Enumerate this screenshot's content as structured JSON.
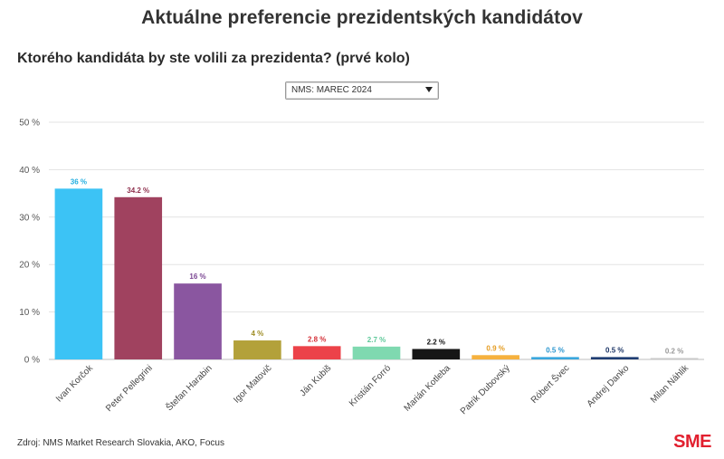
{
  "header": {
    "title": "Aktuálne preferencie prezidentských kandidátov",
    "subtitle": "Ktorého kandidáta by ste volili za prezidenta? (prvé kolo)"
  },
  "filter": {
    "selected": "NMS: MAREC 2024"
  },
  "footer": {
    "source": "Zdroj: NMS Market Research Slovakia, AKO, Focus",
    "logo": "SME"
  },
  "chart_data": {
    "type": "bar",
    "categories": [
      "Ivan Korčok",
      "Peter Pellegrini",
      "Štefan Harabin",
      "Igor Matovič",
      "Ján Kubiš",
      "Kristián Forró",
      "Marián Kotleba",
      "Patrik Dubovský",
      "Róbert Švec",
      "Andrej Danko",
      "Milan Náhlik"
    ],
    "values": [
      36,
      34.2,
      16,
      4,
      2.8,
      2.7,
      2.2,
      0.9,
      0.5,
      0.5,
      0.2
    ],
    "value_labels": [
      "36 %",
      "34.2 %",
      "16 %",
      "4 %",
      "2.8 %",
      "2.7 %",
      "2.2 %",
      "0.9 %",
      "0.5 %",
      "0.5 %",
      "0.2 %"
    ],
    "colors": [
      "#3cc3f5",
      "#a0425f",
      "#8a56a0",
      "#b3a13a",
      "#ec4249",
      "#7fd9b0",
      "#161616",
      "#f6b13e",
      "#3aa7dd",
      "#1f3e73",
      "#c8c8c8"
    ],
    "label_colors": [
      "#22aee0",
      "#8e2f4c",
      "#7a4592",
      "#9e8c24",
      "#d42f37",
      "#5fc99a",
      "#111111",
      "#e59d24",
      "#2a96cf",
      "#1c3566",
      "#999999"
    ],
    "yticks": [
      "0 %",
      "10 %",
      "20 %",
      "30 %",
      "40 %",
      "50 %"
    ],
    "ylim": [
      0,
      50
    ],
    "grid": true
  }
}
